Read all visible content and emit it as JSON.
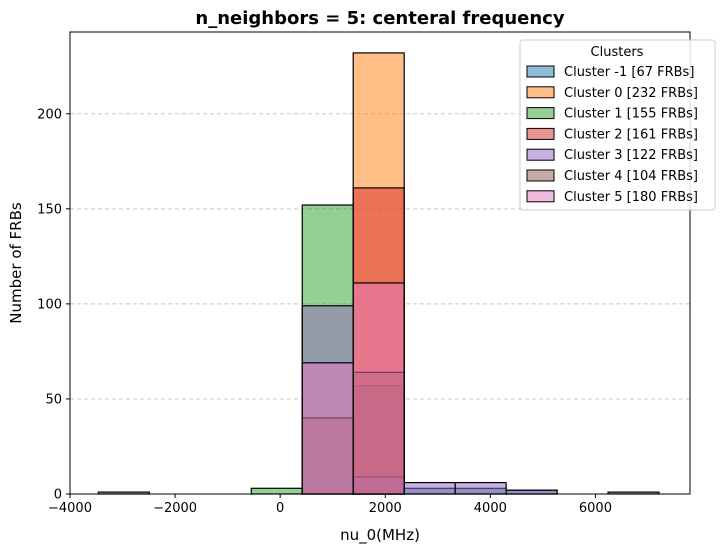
{
  "chart_data": {
    "type": "bar",
    "title": "n_neighbors = 5: centeral frequency",
    "xlabel": "nu_0(MHz)",
    "ylabel": "Number of FRBs",
    "xlim": [
      -4000,
      7800
    ],
    "ylim": [
      0,
      243
    ],
    "xticks": [
      -4000,
      -2000,
      0,
      2000,
      4000,
      6000
    ],
    "xtick_labels": [
      "−4000",
      "−2000",
      "0",
      "2000",
      "4000",
      "6000"
    ],
    "yticks": [
      0,
      50,
      100,
      150,
      200
    ],
    "ytick_labels": [
      "0",
      "50",
      "100",
      "150",
      "200"
    ],
    "grid": "y dashed",
    "legend": {
      "title": "Clusters",
      "placement": "top-right"
    },
    "bin_edges": [
      -3460,
      -2490,
      -1520,
      -550,
      420,
      1390,
      2360,
      3330,
      4300,
      5270,
      6240,
      7210
    ],
    "series": [
      {
        "name": "Cluster -1 [67 FRBs]",
        "color": "#1f77b4",
        "values": [
          1,
          0,
          0,
          0,
          0,
          57,
          3,
          3,
          2,
          0,
          1
        ]
      },
      {
        "name": "Cluster 0 [232 FRBs]",
        "color": "#ff7f0e",
        "values": [
          0,
          0,
          0,
          0,
          0,
          232,
          0,
          0,
          0,
          0,
          0
        ]
      },
      {
        "name": "Cluster 1 [155 FRBs]",
        "color": "#2ca02c",
        "values": [
          0,
          0,
          0,
          3,
          152,
          0,
          0,
          0,
          0,
          0,
          0
        ]
      },
      {
        "name": "Cluster 2 [161 FRBs]",
        "color": "#d62728",
        "values": [
          0,
          0,
          0,
          0,
          0,
          161,
          0,
          0,
          0,
          0,
          0
        ]
      },
      {
        "name": "Cluster 3 [122 FRBs]",
        "color": "#9467bd",
        "values": [
          0,
          0,
          0,
          0,
          99,
          9,
          6,
          6,
          2,
          0,
          0
        ]
      },
      {
        "name": "Cluster 4 [104 FRBs]",
        "color": "#8c564b",
        "values": [
          0,
          0,
          0,
          0,
          40,
          64,
          0,
          0,
          0,
          0,
          0
        ]
      },
      {
        "name": "Cluster 5 [180 FRBs]",
        "color": "#e377c2",
        "values": [
          0,
          0,
          0,
          0,
          69,
          111,
          0,
          0,
          0,
          0,
          0
        ]
      }
    ]
  }
}
